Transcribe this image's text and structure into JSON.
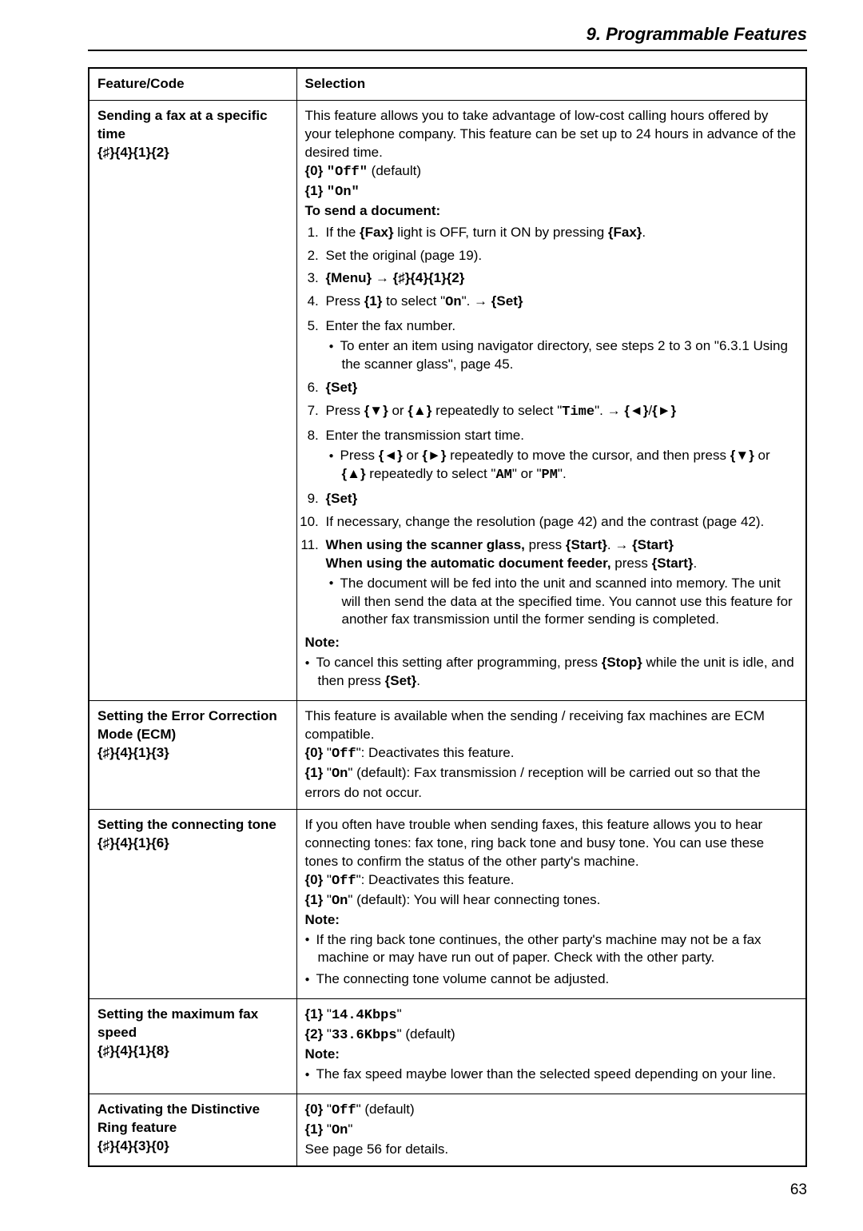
{
  "chapter": "9. Programmable Features",
  "headers": {
    "feature": "Feature/Code",
    "selection": "Selection"
  },
  "row1": {
    "title": "Sending a fax at a specific time",
    "code": "{♯}{4}{1}{2}",
    "intro": "This feature allows you to take advantage of low-cost calling hours offered by your telephone company. This feature can be set up to 24 hours in advance of the desired time.",
    "opt0_prefix": "{0}",
    "opt0_val": "\"Off\"",
    "opt0_suffix": " (default)",
    "opt1_prefix": "{1}",
    "opt1_val": "\"On\"",
    "send_heading": "To send a document:",
    "s1a": "If the ",
    "s1b": "{Fax}",
    "s1c": " light is OFF, turn it ON by pressing ",
    "s1d": "{Fax}",
    "s1e": ".",
    "s2": "Set the original (page 19).",
    "s3a": "{Menu}",
    "s3b": " → ",
    "s3c": "{♯}{4}{1}{2}",
    "s4a": "Press ",
    "s4b": "{1}",
    "s4c": " to select \"",
    "s4d": "On",
    "s4e": "\". → ",
    "s4f": "{Set}",
    "s5": "Enter the fax number.",
    "s5_sub": "To enter an item using navigator directory, see steps 2 to 3 on \"6.3.1 Using the scanner glass\", page 45.",
    "s6": "{Set}",
    "s7a": "Press ",
    "s7b": "{▼}",
    "s7c": " or ",
    "s7d": "{▲}",
    "s7e": " repeatedly to select \"",
    "s7f": "Time",
    "s7g": "\". → ",
    "s7h": "{◄}",
    "s7i": "/",
    "s7j": "{►}",
    "s8": "Enter the transmission start time.",
    "s8_sub_a": "Press ",
    "s8_sub_b": "{◄}",
    "s8_sub_c": " or ",
    "s8_sub_d": "{►}",
    "s8_sub_e": " repeatedly to move the cursor, and then press ",
    "s8_sub_f": "{▼}",
    "s8_sub_g": " or ",
    "s8_sub_h": "{▲}",
    "s8_sub_i": " repeatedly to select \"",
    "s8_sub_j": "AM",
    "s8_sub_k": "\" or \"",
    "s8_sub_l": "PM",
    "s8_sub_m": "\".",
    "s9": "{Set}",
    "s10": "If necessary, change the resolution (page 42) and the contrast (page 42).",
    "s11a": "When using the scanner glass,",
    "s11b": " press ",
    "s11c": "{Start}",
    "s11d": ". → ",
    "s11e": "{Start}",
    "s11f": "When using the automatic document feeder,",
    "s11g": " press ",
    "s11h": "{Start}",
    "s11i": ".",
    "s11_sub": "The document will be fed into the unit and scanned into memory. The unit will then send the data at the specified time. You cannot use this feature for another fax transmission until the former sending is completed.",
    "note_label": "Note:",
    "note_a": "To cancel this setting after programming, press ",
    "note_b": "{Stop}",
    "note_c": " while the unit is idle, and then press ",
    "note_d": "{Set}",
    "note_e": "."
  },
  "row2": {
    "title": "Setting the Error Correction Mode (ECM)",
    "code": "{♯}{4}{1}{3}",
    "intro": "This feature is available when the sending / receiving fax machines are ECM compatible.",
    "o0a": "{0}",
    "o0b": " \"",
    "o0c": "Off",
    "o0d": "\": Deactivates this feature.",
    "o1a": "{1}",
    "o1b": " \"",
    "o1c": "On",
    "o1d": "\" (default): Fax transmission / reception will be carried out so that the errors do not occur."
  },
  "row3": {
    "title": "Setting the connecting tone",
    "code": "{♯}{4}{1}{6}",
    "intro": "If you often have trouble when sending faxes, this feature allows you to hear connecting tones: fax tone, ring back tone and busy tone. You can use these tones to confirm the status of the other party's machine.",
    "o0a": "{0}",
    "o0b": " \"",
    "o0c": "Off",
    "o0d": "\": Deactivates this feature.",
    "o1a": "{1}",
    "o1b": " \"",
    "o1c": "On",
    "o1d": "\" (default): You will hear connecting tones.",
    "note_label": "Note:",
    "n1": "If the ring back tone continues, the other party's machine may not be a fax machine or may have run out of paper. Check with the other party.",
    "n2": "The connecting tone volume cannot be adjusted."
  },
  "row4": {
    "title": "Setting the maximum fax speed",
    "code": "{♯}{4}{1}{8}",
    "o1a": "{1}",
    "o1b": " \"",
    "o1c": "14.4Kbps",
    "o1d": "\"",
    "o2a": "{2}",
    "o2b": " \"",
    "o2c": "33.6Kbps",
    "o2d": "\" (default)",
    "note_label": "Note:",
    "n1": "The fax speed maybe lower than the selected speed depending on your line."
  },
  "row5": {
    "title": "Activating the Distinctive Ring feature",
    "code": "{♯}{4}{3}{0}",
    "o0a": "{0}",
    "o0b": " \"",
    "o0c": "Off",
    "o0d": "\" (default)",
    "o1a": "{1}",
    "o1b": " \"",
    "o1c": "On",
    "o1d": "\"",
    "ref": "See page 56 for details."
  },
  "page_number": "63"
}
